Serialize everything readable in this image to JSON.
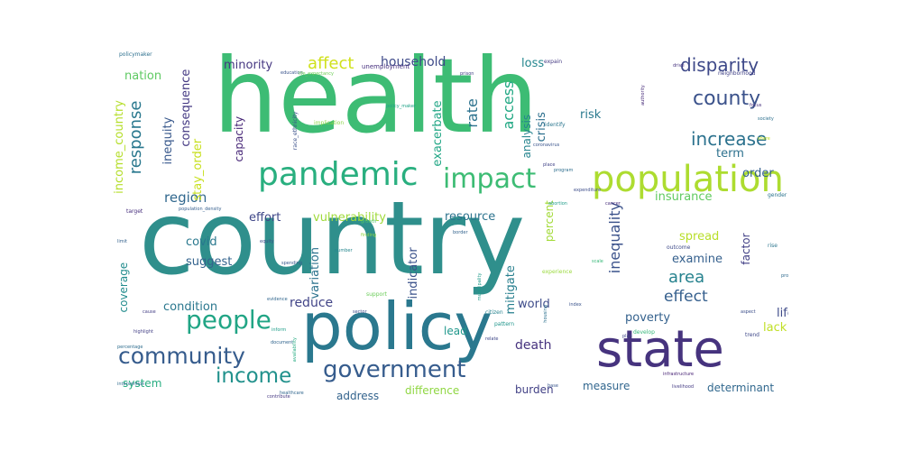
{
  "chart_data": {
    "type": "wordcloud",
    "colormap": "viridis",
    "background": "#ffffff",
    "words": [
      {
        "text": "health",
        "color": "#3dbc74",
        "weight": 1.0
      },
      {
        "text": "country",
        "color": "#2f8f8c",
        "weight": 0.98
      },
      {
        "text": "policy",
        "color": "#2a788e",
        "weight": 0.62
      },
      {
        "text": "state",
        "color": "#46337e",
        "weight": 0.5
      },
      {
        "text": "population",
        "color": "#addc30",
        "weight": 0.42
      },
      {
        "text": "pandemic",
        "color": "#29af7f",
        "weight": 0.38
      },
      {
        "text": "impact",
        "color": "#3dbc74",
        "weight": 0.32
      },
      {
        "text": "government",
        "color": "#365c8d",
        "weight": 0.3
      },
      {
        "text": "people",
        "color": "#21a585",
        "weight": 0.3
      },
      {
        "text": "community",
        "color": "#365c8d",
        "weight": 0.28
      },
      {
        "text": "income",
        "color": "#21918c",
        "weight": 0.27
      },
      {
        "text": "county",
        "color": "#3b528b",
        "weight": 0.23
      },
      {
        "text": "disparity",
        "color": "#3e4989",
        "weight": 0.22
      },
      {
        "text": "increase",
        "color": "#2c728e",
        "weight": 0.22
      },
      {
        "text": "response",
        "color": "#2a788e",
        "weight": 0.2
      },
      {
        "text": "access",
        "color": "#22a884",
        "weight": 0.19
      },
      {
        "text": "affect",
        "color": "#d0e11c",
        "weight": 0.18
      },
      {
        "text": "rate",
        "color": "#2c728e",
        "weight": 0.18
      },
      {
        "text": "inequality",
        "color": "#3b528b",
        "weight": 0.17
      },
      {
        "text": "area",
        "color": "#26828e",
        "weight": 0.17
      },
      {
        "text": "effect",
        "color": "#355f8d",
        "weight": 0.17
      },
      {
        "text": "region",
        "color": "#31688e",
        "weight": 0.15
      },
      {
        "text": "household",
        "color": "#3e4a89",
        "weight": 0.14
      },
      {
        "text": "death",
        "color": "#46327e",
        "weight": 0.14
      },
      {
        "text": "reduce",
        "color": "#414487",
        "weight": 0.14
      },
      {
        "text": "income_country",
        "color": "#b5de2b",
        "weight": 0.12
      },
      {
        "text": "consequence",
        "color": "#443983",
        "weight": 0.12
      },
      {
        "text": "inequity",
        "color": "#38588c",
        "weight": 0.12
      },
      {
        "text": "stay_order",
        "color": "#c8e020",
        "weight": 0.12
      },
      {
        "text": "capacity",
        "color": "#482878",
        "weight": 0.12
      },
      {
        "text": "minority",
        "color": "#453781",
        "weight": 0.12
      },
      {
        "text": "nation",
        "color": "#5ec962",
        "weight": 0.12
      },
      {
        "text": "effort",
        "color": "#3f4788",
        "weight": 0.12
      },
      {
        "text": "vulnerability",
        "color": "#9fda3a",
        "weight": 0.12
      },
      {
        "text": "resource",
        "color": "#2c738e",
        "weight": 0.12
      },
      {
        "text": "exacerbate",
        "color": "#21a685",
        "weight": 0.12
      },
      {
        "text": "analysis",
        "color": "#25848e",
        "weight": 0.11
      },
      {
        "text": "crisis",
        "color": "#2d708e",
        "weight": 0.12
      },
      {
        "text": "risk",
        "color": "#29798e",
        "weight": 0.12
      },
      {
        "text": "percent",
        "color": "#a2da37",
        "weight": 0.11
      },
      {
        "text": "term",
        "color": "#2d718e",
        "weight": 0.12
      },
      {
        "text": "order",
        "color": "#34618d",
        "weight": 0.12
      },
      {
        "text": "insurance",
        "color": "#60ca60",
        "weight": 0.12
      },
      {
        "text": "loss",
        "color": "#24868e",
        "weight": 0.11
      },
      {
        "text": "covid",
        "color": "#29788e",
        "weight": 0.12
      },
      {
        "text": "suggest",
        "color": "#33638d",
        "weight": 0.12
      },
      {
        "text": "variation",
        "color": "#2c738e",
        "weight": 0.12
      },
      {
        "text": "indicator",
        "color": "#3b528b",
        "weight": 0.12
      },
      {
        "text": "mitigate",
        "color": "#277f8e",
        "weight": 0.12
      },
      {
        "text": "spread",
        "color": "#b8de29",
        "weight": 0.12
      },
      {
        "text": "examine",
        "color": "#35608d",
        "weight": 0.12
      },
      {
        "text": "factor",
        "color": "#424086",
        "weight": 0.11
      },
      {
        "text": "coverage",
        "color": "#228c8d",
        "weight": 0.11
      },
      {
        "text": "condition",
        "color": "#2a778e",
        "weight": 0.12
      },
      {
        "text": "world",
        "color": "#3e4c8a",
        "weight": 0.12
      },
      {
        "text": "poverty",
        "color": "#34618d",
        "weight": 0.12
      },
      {
        "text": "life",
        "color": "#3e4a89",
        "weight": 0.12
      },
      {
        "text": "lack",
        "color": "#c0df25",
        "weight": 0.12
      },
      {
        "text": "lead",
        "color": "#1f978b",
        "weight": 0.12
      },
      {
        "text": "system",
        "color": "#27ad81",
        "weight": 0.11
      },
      {
        "text": "address",
        "color": "#33638d",
        "weight": 0.11
      },
      {
        "text": "difference",
        "color": "#90d743",
        "weight": 0.11
      },
      {
        "text": "burden",
        "color": "#424186",
        "weight": 0.11
      },
      {
        "text": "measure",
        "color": "#31668e",
        "weight": 0.11
      },
      {
        "text": "determinant",
        "color": "#31688e",
        "weight": 0.11
      },
      {
        "text": "policymaker",
        "color": "#2d708e",
        "weight": 0.05
      },
      {
        "text": "unemployment",
        "color": "#46307e",
        "weight": 0.05
      },
      {
        "text": "neighborhood",
        "color": "#414287",
        "weight": 0.05
      },
      {
        "text": "expain",
        "color": "#443a83",
        "weight": 0.04
      },
      {
        "text": "implication",
        "color": "#8bd646",
        "weight": 0.05
      },
      {
        "text": "race_ethnicity",
        "color": "#3b518b",
        "weight": 0.05
      },
      {
        "text": "policy_maker",
        "color": "#1fa287",
        "weight": 0.04
      },
      {
        "text": "identify",
        "color": "#2a768e",
        "weight": 0.05
      },
      {
        "text": "focus",
        "color": "#46317e",
        "weight": 0.04
      },
      {
        "text": "society",
        "color": "#2d708e",
        "weight": 0.04
      },
      {
        "text": "population_density",
        "color": "#355e8d",
        "weight": 0.04
      },
      {
        "text": "number",
        "color": "#24868e",
        "weight": 0.04
      },
      {
        "text": "growth",
        "color": "#4ec36b",
        "weight": 0.04
      },
      {
        "text": "finding",
        "color": "#8fd744",
        "weight": 0.05
      },
      {
        "text": "support",
        "color": "#6ccd5a",
        "weight": 0.05
      },
      {
        "text": "equity",
        "color": "#3d4e8a",
        "weight": 0.05
      },
      {
        "text": "evidence",
        "color": "#31678e",
        "weight": 0.05
      },
      {
        "text": "border",
        "color": "#33638d",
        "weight": 0.04
      },
      {
        "text": "experience",
        "color": "#9ad93c",
        "weight": 0.05
      },
      {
        "text": "outcome",
        "color": "#3e4a89",
        "weight": 0.05
      },
      {
        "text": "gender",
        "color": "#2b748e",
        "weight": 0.05
      },
      {
        "text": "target",
        "color": "#472f7d",
        "weight": 0.04
      },
      {
        "text": "housing",
        "color": "#2c718e",
        "weight": 0.04
      },
      {
        "text": "citizen",
        "color": "#25838e",
        "weight": 0.05
      },
      {
        "text": "pattern",
        "color": "#1f958b",
        "weight": 0.05
      },
      {
        "text": "develop",
        "color": "#35b779",
        "weight": 0.05
      },
      {
        "text": "rise",
        "color": "#2b758e",
        "weight": 0.05
      },
      {
        "text": "trend",
        "color": "#3f4889",
        "weight": 0.04
      },
      {
        "text": "highlight",
        "color": "#423f85",
        "weight": 0.04
      },
      {
        "text": "inform",
        "color": "#1f9e89",
        "weight": 0.05
      },
      {
        "text": "spending",
        "color": "#38588c",
        "weight": 0.04
      },
      {
        "text": "relate",
        "color": "#3f4788",
        "weight": 0.04
      },
      {
        "text": "contribute",
        "color": "#453882",
        "weight": 0.04
      },
      {
        "text": "implement",
        "color": "#2e6f8e",
        "weight": 0.04
      },
      {
        "text": "infrastructure",
        "color": "#482475",
        "weight": 0.04
      },
      {
        "text": "document",
        "color": "#32658e",
        "weight": 0.04
      },
      {
        "text": "program",
        "color": "#2e6e8e",
        "weight": 0.04
      },
      {
        "text": "expenditure",
        "color": "#3d4d8a",
        "weight": 0.04
      },
      {
        "text": "municipality",
        "color": "#1f9a8a",
        "weight": 0.04
      },
      {
        "text": "prison",
        "color": "#424186",
        "weight": 0.04
      },
      {
        "text": "education",
        "color": "#3a548c",
        "weight": 0.04
      },
      {
        "text": "life_expectancy",
        "color": "#6ece58",
        "weight": 0.04
      },
      {
        "text": "authority",
        "color": "#472c7a",
        "weight": 0.04
      },
      {
        "text": "coronavirus",
        "color": "#3a548c",
        "weight": 0.04
      },
      {
        "text": "abortion",
        "color": "#1e9c89",
        "weight": 0.04
      },
      {
        "text": "cancer",
        "color": "#472d7b",
        "weight": 0.04
      },
      {
        "text": "place",
        "color": "#414287",
        "weight": 0.04
      },
      {
        "text": "share",
        "color": "#c5e021",
        "weight": 0.04
      },
      {
        "text": "aspect",
        "color": "#3c4f8a",
        "weight": 0.04
      },
      {
        "text": "drive",
        "color": "#46337f",
        "weight": 0.04
      },
      {
        "text": "protect",
        "color": "#2f6b8e",
        "weight": 0.04
      },
      {
        "text": "limit",
        "color": "#34618d",
        "weight": 0.04
      },
      {
        "text": "cause",
        "color": "#433e85",
        "weight": 0.04
      },
      {
        "text": "scale",
        "color": "#37b878",
        "weight": 0.04
      },
      {
        "text": "index",
        "color": "#3a538b",
        "weight": 0.04
      },
      {
        "text": "plan",
        "color": "#414487",
        "weight": 0.04
      },
      {
        "text": "base",
        "color": "#39558c",
        "weight": 0.04
      },
      {
        "text": "livelihood",
        "color": "#443b84",
        "weight": 0.04
      },
      {
        "text": "percentage",
        "color": "#2e6d8e",
        "weight": 0.04
      },
      {
        "text": "intervention",
        "color": "#2f6c8e",
        "weight": 0.04
      },
      {
        "text": "availability",
        "color": "#25ab82",
        "weight": 0.04
      },
      {
        "text": "healthcare",
        "color": "#31678e",
        "weight": 0.04
      },
      {
        "text": "sector",
        "color": "#3d4e8a",
        "weight": 0.04
      }
    ]
  }
}
